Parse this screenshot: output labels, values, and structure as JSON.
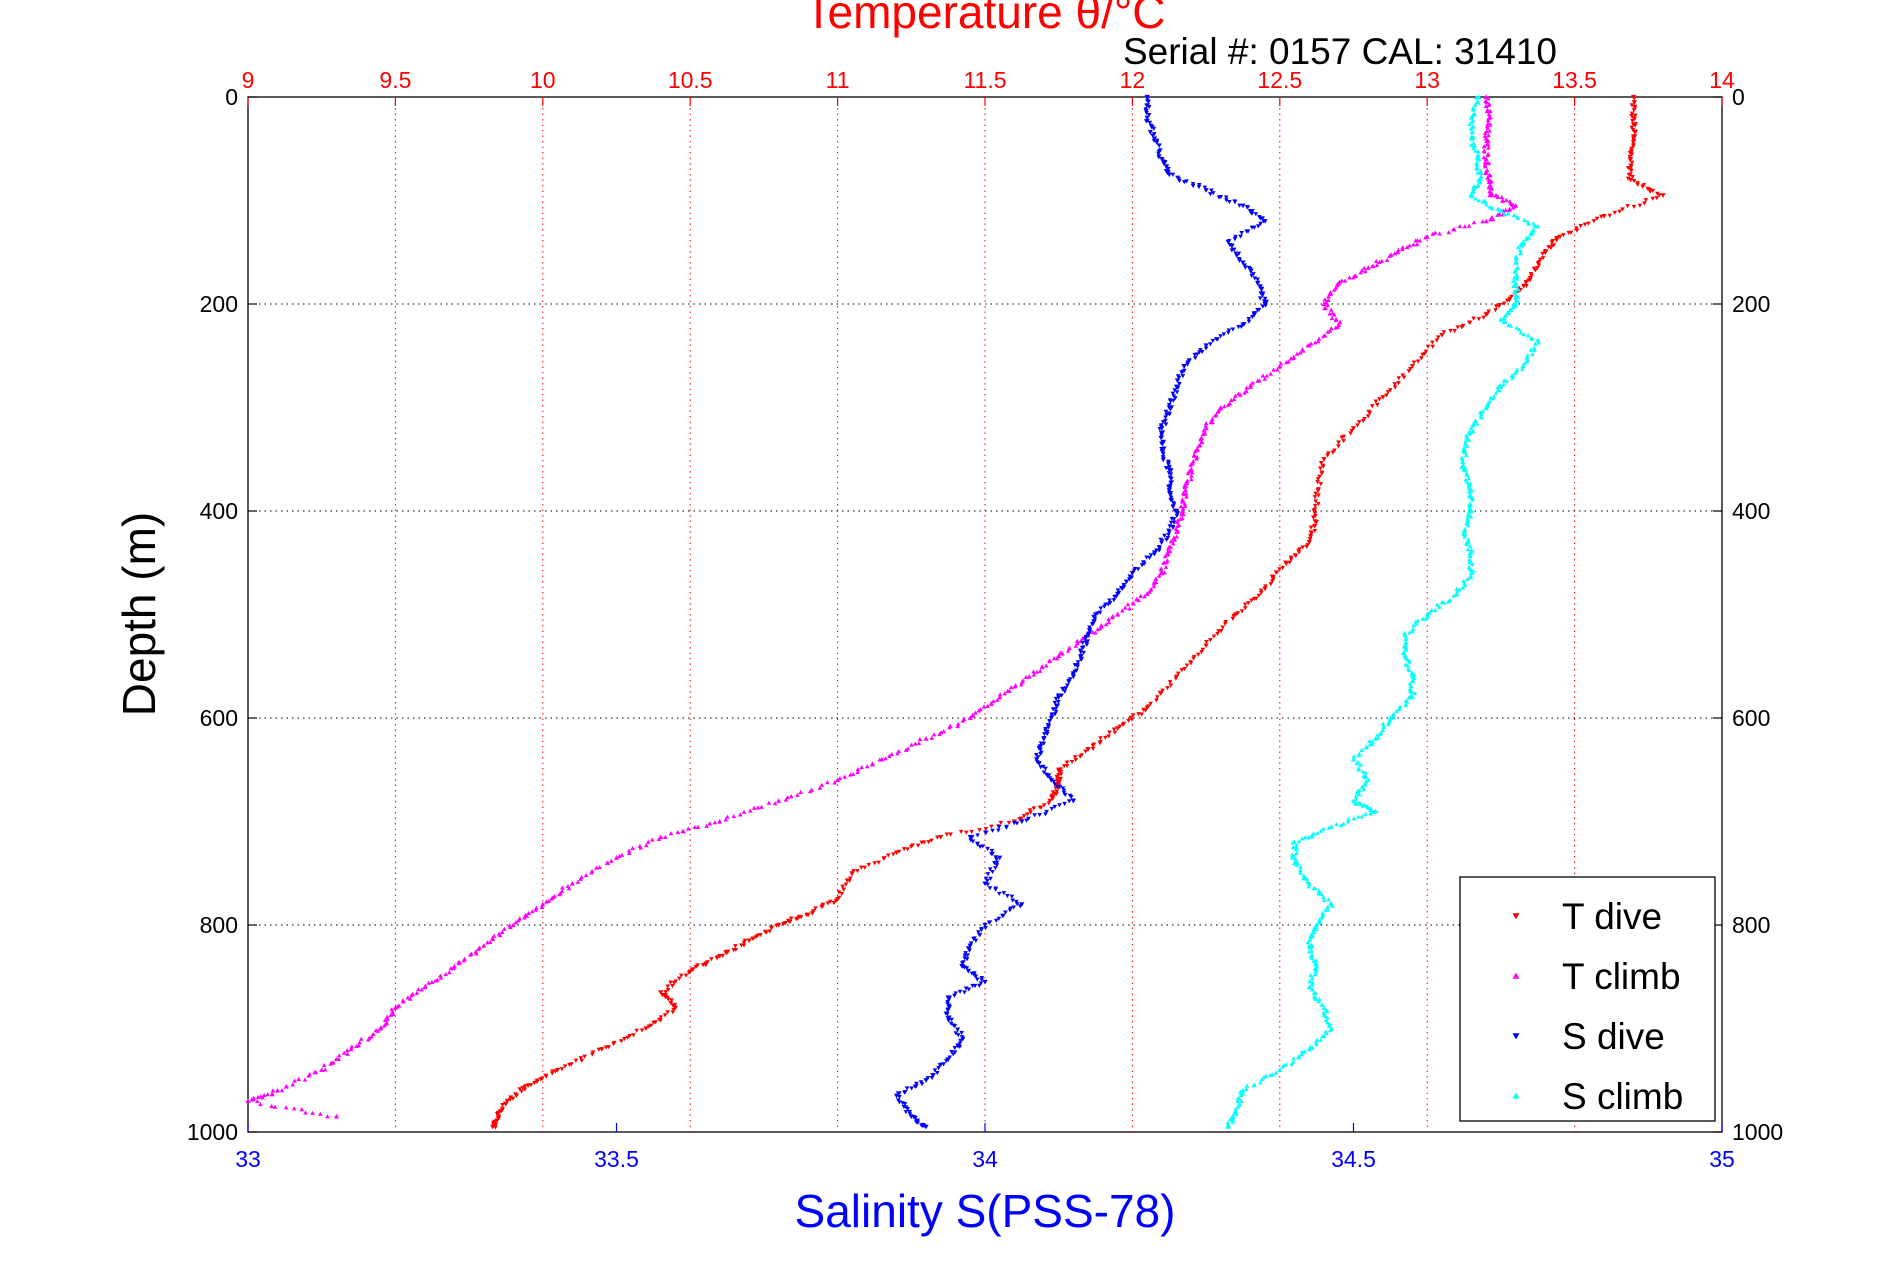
{
  "chart_data": {
    "type": "scatter",
    "title": "Temperature θ/°C",
    "subtitle": "Serial #: 0157  CAL: 31410",
    "xlabel": "Salinity S(PSS-78)",
    "ylabel": "Depth (m)",
    "top_axis": {
      "label": "Temperature θ/°C",
      "lim": [
        9,
        14
      ],
      "ticks": [
        "9",
        "9.5",
        "10",
        "10.5",
        "11",
        "11.5",
        "12",
        "12.5",
        "13",
        "13.5",
        "14"
      ],
      "color": "#ff0000"
    },
    "bottom_axis": {
      "label": "Salinity S(PSS-78)",
      "lim": [
        33,
        35
      ],
      "ticks": [
        "33",
        "33.5",
        "34",
        "34.5",
        "35"
      ],
      "color": "#0000ff"
    },
    "y_axis": {
      "lim": [
        0,
        1000
      ],
      "reversed": true,
      "ticks": [
        "0",
        "200",
        "400",
        "600",
        "800",
        "1000"
      ]
    },
    "grid": true,
    "legend": {
      "position": "bottom-right"
    },
    "series": [
      {
        "name": "T dive",
        "axis": "temperature",
        "color": "#ff0000",
        "marker": "triangle-down",
        "points": [
          [
            13.7,
            0
          ],
          [
            13.7,
            20
          ],
          [
            13.7,
            40
          ],
          [
            13.69,
            60
          ],
          [
            13.69,
            80
          ],
          [
            13.8,
            95
          ],
          [
            13.6,
            115
          ],
          [
            13.45,
            135
          ],
          [
            13.4,
            150
          ],
          [
            13.35,
            175
          ],
          [
            13.3,
            190
          ],
          [
            13.2,
            210
          ],
          [
            13.05,
            230
          ],
          [
            12.95,
            260
          ],
          [
            12.85,
            290
          ],
          [
            12.75,
            320
          ],
          [
            12.65,
            350
          ],
          [
            12.63,
            380
          ],
          [
            12.62,
            410
          ],
          [
            12.6,
            430
          ],
          [
            12.52,
            450
          ],
          [
            12.45,
            475
          ],
          [
            12.35,
            500
          ],
          [
            12.25,
            530
          ],
          [
            12.15,
            560
          ],
          [
            12.05,
            590
          ],
          [
            11.95,
            610
          ],
          [
            11.85,
            630
          ],
          [
            11.75,
            650
          ],
          [
            11.75,
            665
          ],
          [
            11.72,
            680
          ],
          [
            11.6,
            700
          ],
          [
            11.35,
            715
          ],
          [
            11.2,
            730
          ],
          [
            11.05,
            750
          ],
          [
            11.0,
            775
          ],
          [
            10.9,
            790
          ],
          [
            10.8,
            800
          ],
          [
            10.7,
            815
          ],
          [
            10.6,
            830
          ],
          [
            10.5,
            845
          ],
          [
            10.4,
            865
          ],
          [
            10.45,
            880
          ],
          [
            10.35,
            900
          ],
          [
            10.2,
            920
          ],
          [
            10.05,
            940
          ],
          [
            9.95,
            955
          ],
          [
            9.88,
            970
          ],
          [
            9.85,
            985
          ],
          [
            9.83,
            995
          ]
        ]
      },
      {
        "name": "T climb",
        "axis": "temperature",
        "color": "#ff00ff",
        "marker": "triangle-up",
        "points": [
          [
            13.2,
            0
          ],
          [
            13.21,
            20
          ],
          [
            13.2,
            40
          ],
          [
            13.2,
            60
          ],
          [
            13.21,
            80
          ],
          [
            13.22,
            95
          ],
          [
            13.3,
            105
          ],
          [
            13.2,
            120
          ],
          [
            13.0,
            135
          ],
          [
            12.9,
            150
          ],
          [
            12.8,
            165
          ],
          [
            12.7,
            180
          ],
          [
            12.65,
            200
          ],
          [
            12.7,
            220
          ],
          [
            12.6,
            240
          ],
          [
            12.5,
            260
          ],
          [
            12.4,
            280
          ],
          [
            12.3,
            300
          ],
          [
            12.25,
            320
          ],
          [
            12.22,
            340
          ],
          [
            12.2,
            360
          ],
          [
            12.18,
            380
          ],
          [
            12.17,
            400
          ],
          [
            12.15,
            420
          ],
          [
            12.12,
            440
          ],
          [
            12.1,
            460
          ],
          [
            12.05,
            480
          ],
          [
            11.95,
            500
          ],
          [
            11.85,
            520
          ],
          [
            11.75,
            540
          ],
          [
            11.65,
            560
          ],
          [
            11.55,
            580
          ],
          [
            11.45,
            600
          ],
          [
            11.3,
            620
          ],
          [
            11.15,
            640
          ],
          [
            11.0,
            660
          ],
          [
            10.8,
            680
          ],
          [
            10.6,
            700
          ],
          [
            10.4,
            715
          ],
          [
            10.25,
            735
          ],
          [
            10.1,
            760
          ],
          [
            10.0,
            780
          ],
          [
            9.9,
            800
          ],
          [
            9.8,
            820
          ],
          [
            9.7,
            840
          ],
          [
            9.6,
            860
          ],
          [
            9.5,
            880
          ],
          [
            9.45,
            900
          ],
          [
            9.35,
            920
          ],
          [
            9.25,
            940
          ],
          [
            9.1,
            960
          ],
          [
            9.0,
            970
          ],
          [
            9.3,
            985
          ]
        ]
      },
      {
        "name": "S dive",
        "axis": "salinity",
        "color": "#0000ff",
        "marker": "triangle-down",
        "points": [
          [
            34.22,
            0
          ],
          [
            34.22,
            20
          ],
          [
            34.23,
            40
          ],
          [
            34.24,
            60
          ],
          [
            34.25,
            75
          ],
          [
            34.3,
            90
          ],
          [
            34.35,
            105
          ],
          [
            34.38,
            120
          ],
          [
            34.33,
            140
          ],
          [
            34.35,
            160
          ],
          [
            34.37,
            180
          ],
          [
            34.38,
            200
          ],
          [
            34.35,
            220
          ],
          [
            34.3,
            240
          ],
          [
            34.27,
            260
          ],
          [
            34.26,
            280
          ],
          [
            34.25,
            300
          ],
          [
            34.24,
            320
          ],
          [
            34.24,
            340
          ],
          [
            34.25,
            360
          ],
          [
            34.25,
            380
          ],
          [
            34.26,
            400
          ],
          [
            34.25,
            420
          ],
          [
            34.23,
            440
          ],
          [
            34.2,
            460
          ],
          [
            34.18,
            480
          ],
          [
            34.15,
            500
          ],
          [
            34.14,
            520
          ],
          [
            34.13,
            540
          ],
          [
            34.12,
            560
          ],
          [
            34.1,
            580
          ],
          [
            34.09,
            600
          ],
          [
            34.08,
            620
          ],
          [
            34.07,
            640
          ],
          [
            34.09,
            660
          ],
          [
            34.12,
            680
          ],
          [
            34.05,
            700
          ],
          [
            33.98,
            715
          ],
          [
            34.02,
            735
          ],
          [
            34.0,
            760
          ],
          [
            34.05,
            780
          ],
          [
            34.0,
            800
          ],
          [
            33.98,
            820
          ],
          [
            33.97,
            840
          ],
          [
            34.0,
            855
          ],
          [
            33.95,
            870
          ],
          [
            33.95,
            890
          ],
          [
            33.97,
            910
          ],
          [
            33.95,
            930
          ],
          [
            33.92,
            950
          ],
          [
            33.88,
            965
          ],
          [
            33.9,
            985
          ],
          [
            33.92,
            995
          ]
        ]
      },
      {
        "name": "S climb",
        "axis": "salinity",
        "color": "#00ffff",
        "marker": "triangle-up",
        "points": [
          [
            34.67,
            0
          ],
          [
            34.66,
            20
          ],
          [
            34.66,
            40
          ],
          [
            34.67,
            60
          ],
          [
            34.67,
            80
          ],
          [
            34.66,
            95
          ],
          [
            34.7,
            110
          ],
          [
            34.75,
            125
          ],
          [
            34.73,
            140
          ],
          [
            34.72,
            160
          ],
          [
            34.72,
            180
          ],
          [
            34.72,
            200
          ],
          [
            34.7,
            215
          ],
          [
            34.75,
            235
          ],
          [
            34.73,
            260
          ],
          [
            34.7,
            280
          ],
          [
            34.68,
            300
          ],
          [
            34.66,
            320
          ],
          [
            34.65,
            340
          ],
          [
            34.65,
            360
          ],
          [
            34.66,
            380
          ],
          [
            34.66,
            400
          ],
          [
            34.65,
            420
          ],
          [
            34.66,
            440
          ],
          [
            34.66,
            460
          ],
          [
            34.64,
            480
          ],
          [
            34.6,
            500
          ],
          [
            34.57,
            520
          ],
          [
            34.57,
            540
          ],
          [
            34.58,
            560
          ],
          [
            34.58,
            580
          ],
          [
            34.55,
            600
          ],
          [
            34.53,
            620
          ],
          [
            34.5,
            640
          ],
          [
            34.52,
            660
          ],
          [
            34.5,
            680
          ],
          [
            34.53,
            690
          ],
          [
            34.47,
            705
          ],
          [
            34.42,
            720
          ],
          [
            34.42,
            740
          ],
          [
            34.44,
            760
          ],
          [
            34.47,
            780
          ],
          [
            34.45,
            800
          ],
          [
            34.44,
            820
          ],
          [
            34.45,
            840
          ],
          [
            34.44,
            860
          ],
          [
            34.46,
            880
          ],
          [
            34.47,
            900
          ],
          [
            34.44,
            920
          ],
          [
            34.4,
            940
          ],
          [
            34.35,
            960
          ],
          [
            34.34,
            980
          ],
          [
            34.33,
            995
          ]
        ]
      }
    ]
  }
}
